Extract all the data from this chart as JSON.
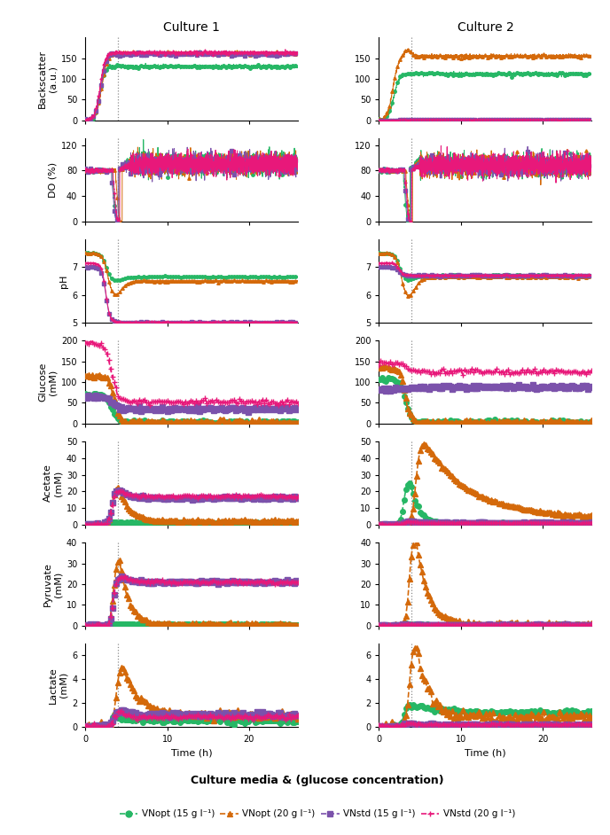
{
  "colors": {
    "VNopt_15": "#26b765",
    "VNopt_20": "#d4690a",
    "VNstd_15": "#7b52ab",
    "VNstd_20": "#e8187a"
  },
  "dashed_line_x": 4.0,
  "time_range": [
    0,
    26
  ],
  "row_labels": [
    "Backscatter\n(a.u.)",
    "DO (%)",
    "pH",
    "Glucose\n(mM)",
    "Acetate\n(mM)",
    "Pyruvate\n(mM)",
    "Lactate\n(mM)"
  ],
  "col_labels": [
    "Culture 1",
    "Culture 2"
  ],
  "xlabel": "Time (h)",
  "legend_title": "Culture media & (glucose concentration)",
  "legend_entries": [
    "VNopt (15 g l⁻¹)",
    "VNopt (20 g l⁻¹)",
    "VNstd (15 g l⁻¹)",
    "VNstd (20 g l⁻¹)"
  ]
}
